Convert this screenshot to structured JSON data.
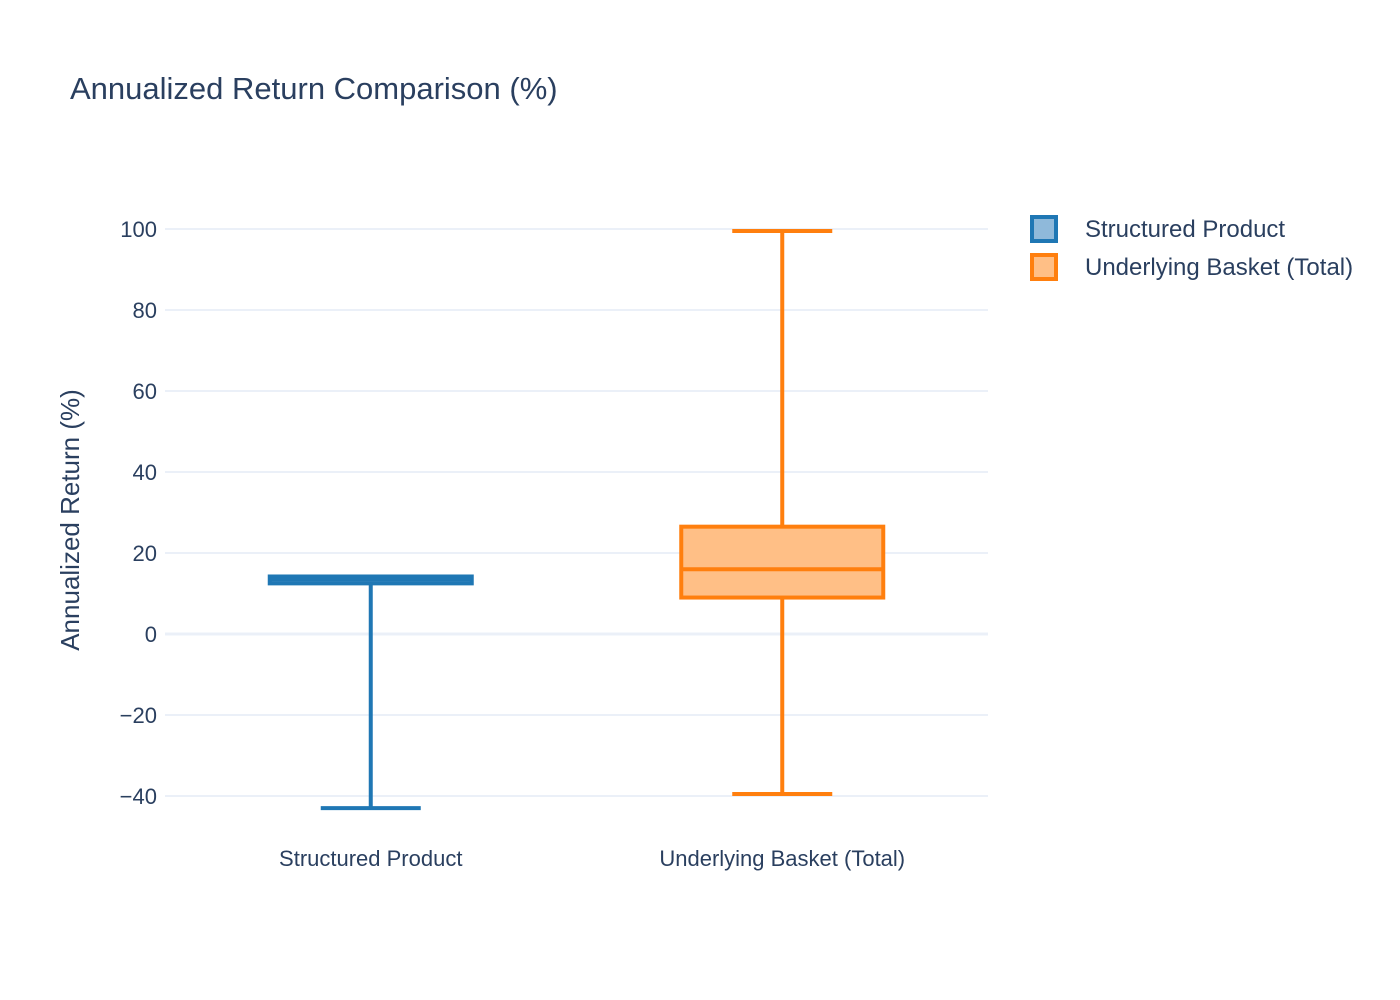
{
  "chart_data": {
    "type": "box",
    "title": "Annualized Return Comparison (%)",
    "xlabel": "",
    "ylabel": "Annualized Return (%)",
    "ylim": [
      -47,
      106
    ],
    "yticks": [
      100,
      80,
      60,
      40,
      20,
      0,
      -20,
      -40
    ],
    "ytick_labels": [
      "100",
      "80",
      "60",
      "40",
      "20",
      "0",
      "−20",
      "−40"
    ],
    "grid": true,
    "legend_position": "top-right",
    "categories": [
      "Structured Product",
      "Underlying Basket (Total)"
    ],
    "series": [
      {
        "name": "Structured Product",
        "category": "Structured Product",
        "color": "#1f77b4",
        "fill": "#8fb9da",
        "min": -43,
        "q1": 12.5,
        "median": 13.5,
        "q3": 14.2,
        "max": 14.2
      },
      {
        "name": "Underlying Basket (Total)",
        "category": "Underlying Basket (Total)",
        "color": "#ff7f0e",
        "fill": "#ffbf86",
        "min": -39.5,
        "q1": 9,
        "median": 16,
        "q3": 26.5,
        "max": 99.5
      }
    ]
  }
}
